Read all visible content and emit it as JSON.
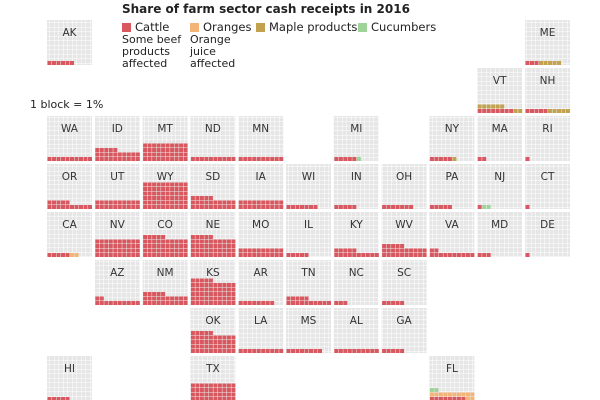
{
  "chart_data": {
    "type": "waffle",
    "title": "Share of farm sector cash receipts in 2016",
    "scale_note": "1 block = 1%",
    "categories": [
      "AK",
      "ME",
      "VT",
      "NH",
      "WA",
      "ID",
      "MT",
      "ND",
      "MN",
      "MI",
      "NY",
      "MA",
      "RI",
      "OR",
      "UT",
      "WY",
      "SD",
      "IA",
      "WI",
      "IN",
      "OH",
      "PA",
      "NJ",
      "CT",
      "CA",
      "NV",
      "CO",
      "NE",
      "MO",
      "IL",
      "KY",
      "WV",
      "VA",
      "MD",
      "DE",
      "AZ",
      "NM",
      "KS",
      "AR",
      "TN",
      "NC",
      "SC",
      "OK",
      "LA",
      "MS",
      "AL",
      "GA",
      "HI",
      "TX",
      "FL"
    ],
    "series": [
      {
        "name": "Cattle",
        "note": "Some beef products affected",
        "color": "#d9575e",
        "values": [
          6,
          3,
          8,
          5,
          10,
          25,
          40,
          10,
          10,
          5,
          5,
          2,
          1,
          15,
          20,
          60,
          25,
          20,
          7,
          5,
          7,
          5,
          1,
          1,
          5,
          40,
          45,
          45,
          20,
          5,
          15,
          25,
          12,
          3,
          1,
          12,
          25,
          55,
          8,
          15,
          3,
          5,
          45,
          10,
          8,
          10,
          5,
          5,
          40,
          8
        ]
      },
      {
        "name": "Oranges",
        "note": "Orange juice affected",
        "color": "#f3b476",
        "values": [
          0,
          0,
          0,
          0,
          0,
          0,
          0,
          0,
          0,
          0,
          0,
          0,
          0,
          0,
          0,
          0,
          0,
          0,
          0,
          0,
          0,
          0,
          0,
          0,
          2,
          0,
          0,
          0,
          0,
          0,
          0,
          0,
          0,
          0,
          0,
          0,
          0,
          0,
          0,
          0,
          0,
          0,
          0,
          0,
          0,
          0,
          0,
          0,
          0,
          12
        ]
      },
      {
        "name": "Maple products",
        "color": "#c2a14f",
        "values": [
          0,
          5,
          8,
          5,
          0,
          0,
          0,
          0,
          0,
          0,
          1,
          0,
          0,
          0,
          0,
          0,
          0,
          0,
          0,
          0,
          0,
          0,
          0,
          0,
          0,
          0,
          0,
          0,
          0,
          0,
          0,
          0,
          0,
          0,
          0,
          0,
          0,
          0,
          0,
          0,
          0,
          0,
          0,
          0,
          0,
          0,
          0,
          0,
          0,
          0
        ]
      },
      {
        "name": "Cucumbers",
        "color": "#9fd39a",
        "values": [
          0,
          0,
          0,
          0,
          0,
          0,
          0,
          0,
          0,
          1,
          0,
          0,
          0,
          0,
          0,
          0,
          0,
          0,
          0,
          0,
          0,
          0,
          2,
          0,
          0,
          0,
          0,
          0,
          0,
          0,
          0,
          0,
          0,
          0,
          0,
          0,
          0,
          0,
          0,
          0,
          0,
          0,
          0,
          0,
          0,
          0,
          0,
          0,
          0,
          2
        ]
      }
    ]
  }
}
